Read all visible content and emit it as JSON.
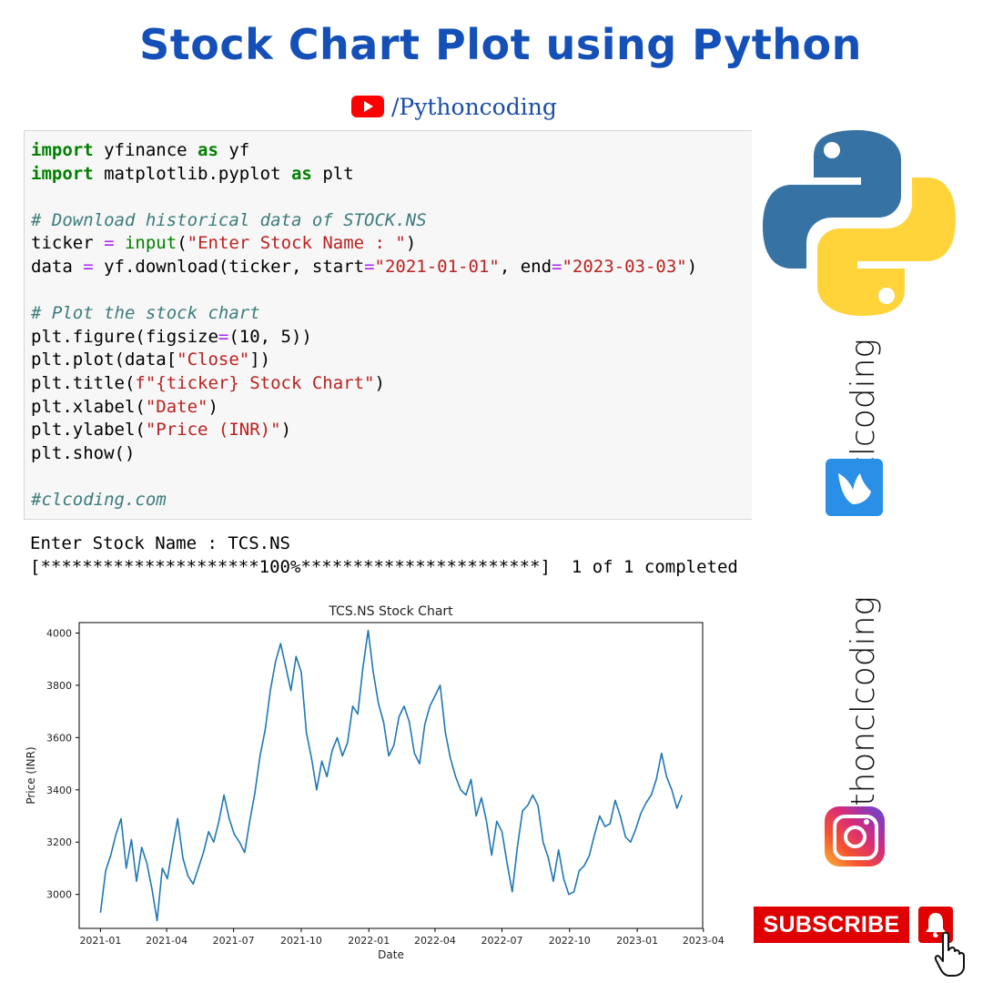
{
  "header": {
    "title": "Stock Chart Plot using Python",
    "youtube_handle": "/Pythoncoding"
  },
  "code_cell": {
    "lines": [
      "import yfinance as yf",
      "import matplotlib.pyplot as plt",
      "",
      "# Download historical data of STOCK.NS",
      "ticker = input(\"Enter Stock Name : \")",
      "data = yf.download(ticker, start=\"2021-01-01\", end=\"2023-03-03\")",
      "",
      "# Plot the stock chart",
      "plt.figure(figsize=(10, 5))",
      "plt.plot(data[\"Close\"])",
      "plt.title(f\"{ticker} Stock Chart\")",
      "plt.xlabel(\"Date\")",
      "plt.ylabel(\"Price (INR)\")",
      "plt.show()",
      "",
      "#clcoding.com"
    ]
  },
  "output": {
    "prompt_line": "Enter Stock Name : TCS.NS",
    "progress_line": "[*********************100%***********************]  1 of 1 completed"
  },
  "sidebar": {
    "brand_1": "clcoding",
    "brand_2": "pythonclcoding",
    "subscribe_label": "SUBSCRIBE",
    "icons": [
      "python-logo",
      "bird-logo-icon",
      "instagram-icon",
      "bell-icon",
      "hand-pointer-icon"
    ]
  },
  "colors": {
    "title": "#1450b8",
    "line": "#1f77b4",
    "subscribe": "#e00000"
  },
  "chart_data": {
    "type": "line",
    "title": "TCS.NS Stock Chart",
    "xlabel": "Date",
    "ylabel": "Price (INR)",
    "xlim": [
      "2020-12-03",
      "2023-03-31"
    ],
    "ylim": [
      2870,
      4040
    ],
    "xticks": [
      "2021-01",
      "2021-04",
      "2021-07",
      "2021-10",
      "2022-01",
      "2022-04",
      "2022-07",
      "2022-10",
      "2023-01",
      "2023-04"
    ],
    "yticks": [
      3000,
      3200,
      3400,
      3600,
      3800,
      4000
    ],
    "grid": false,
    "series": [
      {
        "x": [
          "2021-01-01",
          "2021-01-08",
          "2021-01-15",
          "2021-01-22",
          "2021-01-29",
          "2021-02-05",
          "2021-02-12",
          "2021-02-19",
          "2021-02-26",
          "2021-03-05",
          "2021-03-12",
          "2021-03-19",
          "2021-03-26",
          "2021-04-02",
          "2021-04-09",
          "2021-04-16",
          "2021-04-23",
          "2021-04-30",
          "2021-05-07",
          "2021-05-14",
          "2021-05-21",
          "2021-05-28",
          "2021-06-04",
          "2021-06-11",
          "2021-06-18",
          "2021-06-25",
          "2021-07-02",
          "2021-07-09",
          "2021-07-16",
          "2021-07-23",
          "2021-07-30",
          "2021-08-06",
          "2021-08-13",
          "2021-08-20",
          "2021-08-27",
          "2021-09-03",
          "2021-09-10",
          "2021-09-17",
          "2021-09-24",
          "2021-10-01",
          "2021-10-08",
          "2021-10-15",
          "2021-10-22",
          "2021-10-29",
          "2021-11-05",
          "2021-11-12",
          "2021-11-19",
          "2021-11-26",
          "2021-12-03",
          "2021-12-10",
          "2021-12-17",
          "2021-12-24",
          "2021-12-31",
          "2022-01-07",
          "2022-01-14",
          "2022-01-21",
          "2022-01-28",
          "2022-02-04",
          "2022-02-11",
          "2022-02-18",
          "2022-02-25",
          "2022-03-04",
          "2022-03-11",
          "2022-03-18",
          "2022-03-25",
          "2022-04-01",
          "2022-04-08",
          "2022-04-15",
          "2022-04-22",
          "2022-04-29",
          "2022-05-06",
          "2022-05-13",
          "2022-05-20",
          "2022-05-27",
          "2022-06-03",
          "2022-06-10",
          "2022-06-17",
          "2022-06-24",
          "2022-07-01",
          "2022-07-08",
          "2022-07-15",
          "2022-07-22",
          "2022-07-29",
          "2022-08-05",
          "2022-08-12",
          "2022-08-19",
          "2022-08-26",
          "2022-09-02",
          "2022-09-09",
          "2022-09-16",
          "2022-09-23",
          "2022-09-30",
          "2022-10-07",
          "2022-10-14",
          "2022-10-21",
          "2022-10-28",
          "2022-11-04",
          "2022-11-11",
          "2022-11-18",
          "2022-11-25",
          "2022-12-02",
          "2022-12-09",
          "2022-12-16",
          "2022-12-23",
          "2022-12-30",
          "2023-01-06",
          "2023-01-13",
          "2023-01-20",
          "2023-01-27",
          "2023-02-03",
          "2023-02-10",
          "2023-02-17",
          "2023-02-24",
          "2023-03-03"
        ],
        "values": [
          2930,
          3090,
          3150,
          3230,
          3290,
          3100,
          3210,
          3050,
          3180,
          3120,
          3020,
          2900,
          3100,
          3060,
          3180,
          3290,
          3140,
          3070,
          3040,
          3100,
          3160,
          3240,
          3200,
          3280,
          3380,
          3290,
          3230,
          3200,
          3160,
          3280,
          3390,
          3530,
          3630,
          3780,
          3890,
          3960,
          3870,
          3780,
          3910,
          3850,
          3620,
          3520,
          3400,
          3510,
          3450,
          3550,
          3600,
          3530,
          3580,
          3720,
          3690,
          3870,
          4010,
          3850,
          3730,
          3660,
          3530,
          3570,
          3680,
          3720,
          3660,
          3540,
          3500,
          3650,
          3720,
          3760,
          3800,
          3620,
          3520,
          3450,
          3400,
          3380,
          3440,
          3300,
          3370,
          3280,
          3150,
          3280,
          3240,
          3120,
          3010,
          3180,
          3320,
          3340,
          3380,
          3340,
          3200,
          3140,
          3050,
          3170,
          3060,
          3000,
          3010,
          3090,
          3110,
          3150,
          3230,
          3300,
          3260,
          3270,
          3360,
          3300,
          3220,
          3200,
          3250,
          3310,
          3350,
          3380,
          3440,
          3540,
          3450,
          3400,
          3330,
          3380
        ]
      }
    ]
  }
}
